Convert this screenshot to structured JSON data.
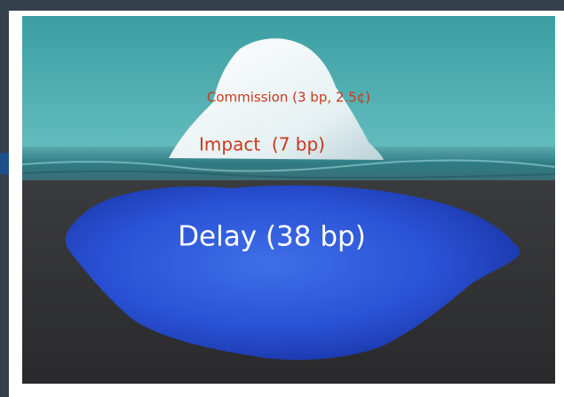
{
  "labels": {
    "commission": "Commission (3 bp, 2.5¢)",
    "impact": "Impact  (7 bp)",
    "delay": "Delay (38 bp)"
  }
}
